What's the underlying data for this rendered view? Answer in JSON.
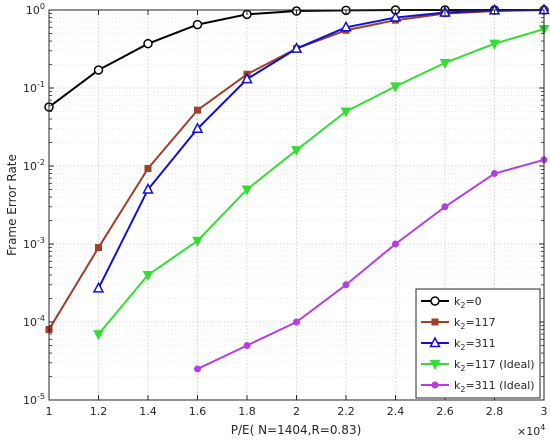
{
  "chart_data": {
    "type": "line",
    "xlabel": "P/E( N=1404,R=0.83)",
    "ylabel": "Frame Error Rate",
    "x_multiplier_label": "×10",
    "x_multiplier_exp": "4",
    "x_scale": "linear",
    "y_scale": "log",
    "xlim": [
      10000,
      30000
    ],
    "ylim": [
      1e-05,
      1
    ],
    "grid": true,
    "legend_position": "bottom-right",
    "x_ticks": [
      {
        "value": 10000,
        "label": "1"
      },
      {
        "value": 12000,
        "label": "1.2"
      },
      {
        "value": 14000,
        "label": "1.4"
      },
      {
        "value": 16000,
        "label": "1.6"
      },
      {
        "value": 18000,
        "label": "1.8"
      },
      {
        "value": 20000,
        "label": "2"
      },
      {
        "value": 22000,
        "label": "2.2"
      },
      {
        "value": 24000,
        "label": "2.4"
      },
      {
        "value": 26000,
        "label": "2.6"
      },
      {
        "value": 28000,
        "label": "2.8"
      },
      {
        "value": 30000,
        "label": "3"
      }
    ],
    "y_ticks": [
      {
        "value": 1e-05,
        "base": "10",
        "exp": "-5"
      },
      {
        "value": 0.0001,
        "base": "10",
        "exp": "-4"
      },
      {
        "value": 0.001,
        "base": "10",
        "exp": "-3"
      },
      {
        "value": 0.01,
        "base": "10",
        "exp": "-2"
      },
      {
        "value": 0.1,
        "base": "10",
        "exp": "-1"
      },
      {
        "value": 1,
        "base": "10",
        "exp": "0"
      }
    ],
    "series": [
      {
        "name_base": "k",
        "name_sub": "2",
        "name_rest": "=0",
        "color": "#000000",
        "marker": "circle",
        "marker_fill": "none",
        "x": [
          10000,
          12000,
          14000,
          16000,
          18000,
          20000,
          22000,
          24000,
          26000,
          28000,
          30000
        ],
        "y": [
          0.057,
          0.17,
          0.37,
          0.65,
          0.88,
          0.97,
          0.99,
          1.0,
          1.0,
          1.0,
          1.0
        ]
      },
      {
        "name_base": "k",
        "name_sub": "2",
        "name_rest": "=117",
        "color": "#a0402a",
        "marker": "square",
        "marker_fill": "#a0402a",
        "x": [
          10000,
          12000,
          14000,
          16000,
          18000,
          20000,
          22000,
          24000,
          26000,
          28000,
          30000
        ],
        "y": [
          8e-05,
          0.0009,
          0.0093,
          0.052,
          0.15,
          0.32,
          0.55,
          0.74,
          0.9,
          0.97,
          1.0
        ]
      },
      {
        "name_base": "k",
        "name_sub": "2",
        "name_rest": "=311",
        "color": "#1010d0",
        "marker": "triangle-up",
        "marker_fill": "none",
        "x": [
          12000,
          14000,
          16000,
          18000,
          20000,
          22000,
          24000,
          26000,
          28000,
          30000
        ],
        "y": [
          0.00027,
          0.005,
          0.03,
          0.13,
          0.32,
          0.6,
          0.8,
          0.93,
          0.99,
          1.0
        ]
      },
      {
        "name_base": "k",
        "name_sub": "2",
        "name_rest": "=117 (Ideal)",
        "color": "#33dd33",
        "marker": "triangle-down",
        "marker_fill": "#33dd33",
        "x": [
          12000,
          14000,
          16000,
          18000,
          20000,
          22000,
          24000,
          26000,
          28000,
          30000
        ],
        "y": [
          7e-05,
          0.0004,
          0.0011,
          0.005,
          0.016,
          0.05,
          0.105,
          0.21,
          0.37,
          0.57
        ]
      },
      {
        "name_base": "k",
        "name_sub": "2",
        "name_rest": "=311 (Ideal)",
        "color": "#b43fe0",
        "marker": "circle-small",
        "marker_fill": "#b43fe0",
        "x": [
          16000,
          18000,
          20000,
          22000,
          24000,
          26000,
          28000,
          30000
        ],
        "y": [
          2.5e-05,
          5e-05,
          0.0001,
          0.0003,
          0.001,
          0.003,
          0.008,
          0.012
        ]
      }
    ]
  }
}
